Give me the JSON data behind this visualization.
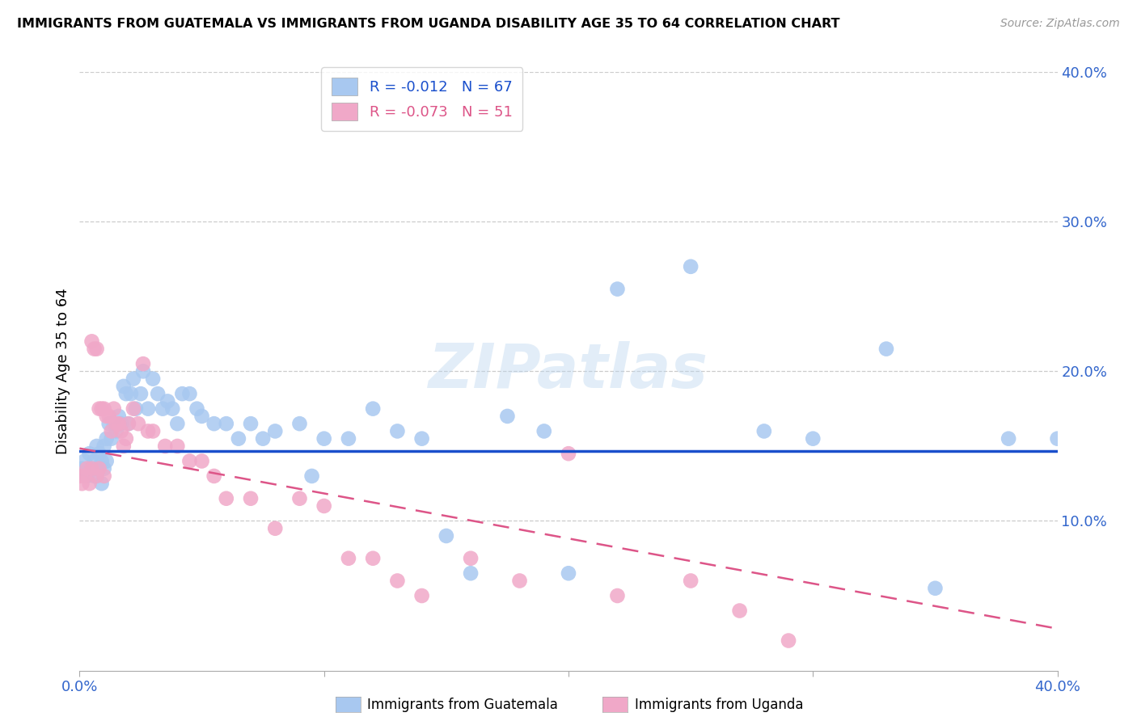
{
  "title": "IMMIGRANTS FROM GUATEMALA VS IMMIGRANTS FROM UGANDA DISABILITY AGE 35 TO 64 CORRELATION CHART",
  "source": "Source: ZipAtlas.com",
  "ylabel": "Disability Age 35 to 64",
  "xlim": [
    0.0,
    0.4
  ],
  "ylim": [
    0.0,
    0.4
  ],
  "color_guatemala": "#a8c8f0",
  "color_uganda": "#f0a8c8",
  "line_color_guatemala": "#1a4fcc",
  "line_color_uganda": "#dd5588",
  "legend1_label": "R = -0.012   N = 67",
  "legend2_label": "R = -0.073   N = 51",
  "watermark": "ZIPatlas",
  "guatemala_x": [
    0.001,
    0.002,
    0.003,
    0.004,
    0.005,
    0.006,
    0.006,
    0.007,
    0.007,
    0.008,
    0.009,
    0.009,
    0.01,
    0.01,
    0.011,
    0.011,
    0.012,
    0.013,
    0.014,
    0.015,
    0.016,
    0.017,
    0.018,
    0.019,
    0.02,
    0.021,
    0.022,
    0.023,
    0.025,
    0.026,
    0.028,
    0.03,
    0.032,
    0.034,
    0.036,
    0.038,
    0.04,
    0.042,
    0.045,
    0.048,
    0.05,
    0.055,
    0.06,
    0.065,
    0.07,
    0.075,
    0.08,
    0.09,
    0.095,
    0.1,
    0.11,
    0.12,
    0.13,
    0.14,
    0.15,
    0.16,
    0.175,
    0.19,
    0.2,
    0.22,
    0.25,
    0.28,
    0.3,
    0.33,
    0.35,
    0.38,
    0.4
  ],
  "guatemala_y": [
    0.135,
    0.14,
    0.13,
    0.145,
    0.135,
    0.14,
    0.13,
    0.15,
    0.135,
    0.145,
    0.14,
    0.125,
    0.15,
    0.135,
    0.155,
    0.14,
    0.165,
    0.155,
    0.165,
    0.16,
    0.17,
    0.165,
    0.19,
    0.185,
    0.165,
    0.185,
    0.195,
    0.175,
    0.185,
    0.2,
    0.175,
    0.195,
    0.185,
    0.175,
    0.18,
    0.175,
    0.165,
    0.185,
    0.185,
    0.175,
    0.17,
    0.165,
    0.165,
    0.155,
    0.165,
    0.155,
    0.16,
    0.165,
    0.13,
    0.155,
    0.155,
    0.175,
    0.16,
    0.155,
    0.09,
    0.065,
    0.17,
    0.16,
    0.065,
    0.255,
    0.27,
    0.16,
    0.155,
    0.215,
    0.055,
    0.155,
    0.155
  ],
  "uganda_x": [
    0.0,
    0.001,
    0.002,
    0.003,
    0.004,
    0.005,
    0.005,
    0.006,
    0.007,
    0.007,
    0.008,
    0.008,
    0.009,
    0.01,
    0.01,
    0.011,
    0.012,
    0.013,
    0.014,
    0.015,
    0.016,
    0.017,
    0.018,
    0.019,
    0.02,
    0.022,
    0.024,
    0.026,
    0.028,
    0.03,
    0.035,
    0.04,
    0.045,
    0.05,
    0.055,
    0.06,
    0.07,
    0.08,
    0.09,
    0.1,
    0.11,
    0.12,
    0.13,
    0.14,
    0.16,
    0.18,
    0.2,
    0.22,
    0.25,
    0.27,
    0.29
  ],
  "uganda_y": [
    0.13,
    0.125,
    0.13,
    0.135,
    0.125,
    0.22,
    0.135,
    0.215,
    0.215,
    0.13,
    0.175,
    0.135,
    0.175,
    0.175,
    0.13,
    0.17,
    0.17,
    0.16,
    0.175,
    0.165,
    0.165,
    0.16,
    0.15,
    0.155,
    0.165,
    0.175,
    0.165,
    0.205,
    0.16,
    0.16,
    0.15,
    0.15,
    0.14,
    0.14,
    0.13,
    0.115,
    0.115,
    0.095,
    0.115,
    0.11,
    0.075,
    0.075,
    0.06,
    0.05,
    0.075,
    0.06,
    0.145,
    0.05,
    0.06,
    0.04,
    0.02
  ],
  "guatemala_line_x": [
    0.0,
    0.4
  ],
  "guatemala_line_y": [
    0.1465,
    0.1465
  ],
  "uganda_line_x": [
    0.0,
    0.4
  ],
  "uganda_line_y": [
    0.1485,
    0.028
  ]
}
